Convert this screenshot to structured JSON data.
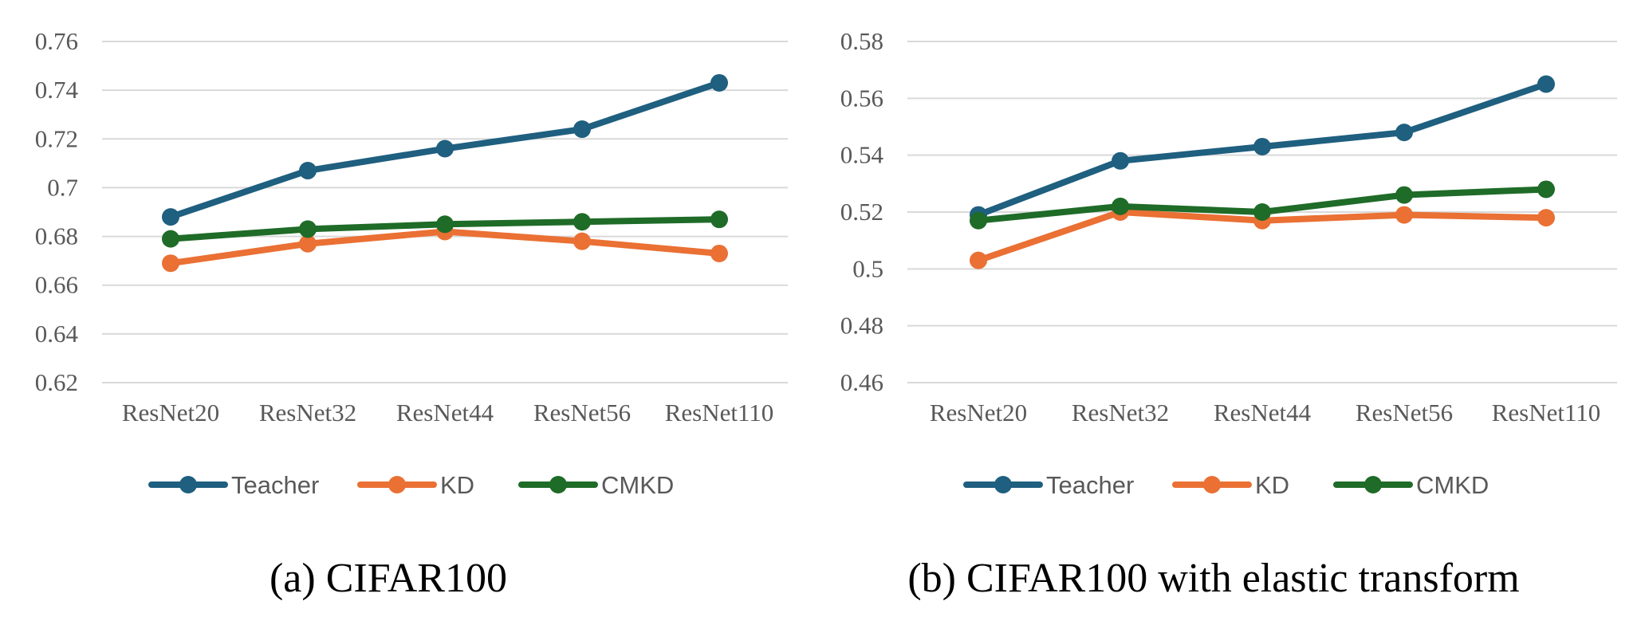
{
  "colors": {
    "teacher": "#1f5f7f",
    "kd": "#ea7034",
    "cmkd": "#1f6b28",
    "grid": "#d9d9d9",
    "tick": "#595959"
  },
  "chart_data": [
    {
      "type": "line",
      "title": "(a) CIFAR100",
      "categories": [
        "ResNet20",
        "ResNet32",
        "ResNet44",
        "ResNet56",
        "ResNet110"
      ],
      "ylim": [
        0.62,
        0.76
      ],
      "yticks": [
        "0.76",
        "0.74",
        "0.72",
        "0.7",
        "0.68",
        "0.66",
        "0.64",
        "0.62"
      ],
      "grid": true,
      "legend": "bottom",
      "series": [
        {
          "name": "Teacher",
          "values": [
            0.688,
            0.707,
            0.716,
            0.724,
            0.743
          ]
        },
        {
          "name": "KD",
          "values": [
            0.669,
            0.677,
            0.682,
            0.678,
            0.673
          ]
        },
        {
          "name": "CMKD",
          "values": [
            0.679,
            0.683,
            0.685,
            0.686,
            0.687
          ]
        }
      ]
    },
    {
      "type": "line",
      "title": "(b) CIFAR100 with elastic transform",
      "categories": [
        "ResNet20",
        "ResNet32",
        "ResNet44",
        "ResNet56",
        "ResNet110"
      ],
      "ylim": [
        0.46,
        0.58
      ],
      "yticks": [
        "0.58",
        "0.56",
        "0.54",
        "0.52",
        "0.5",
        "0.48",
        "0.46"
      ],
      "grid": true,
      "legend": "bottom",
      "series": [
        {
          "name": "Teacher",
          "values": [
            0.519,
            0.538,
            0.543,
            0.548,
            0.565
          ]
        },
        {
          "name": "KD",
          "values": [
            0.503,
            0.52,
            0.517,
            0.519,
            0.518
          ]
        },
        {
          "name": "CMKD",
          "values": [
            0.517,
            0.522,
            0.52,
            0.526,
            0.528
          ]
        }
      ]
    }
  ]
}
